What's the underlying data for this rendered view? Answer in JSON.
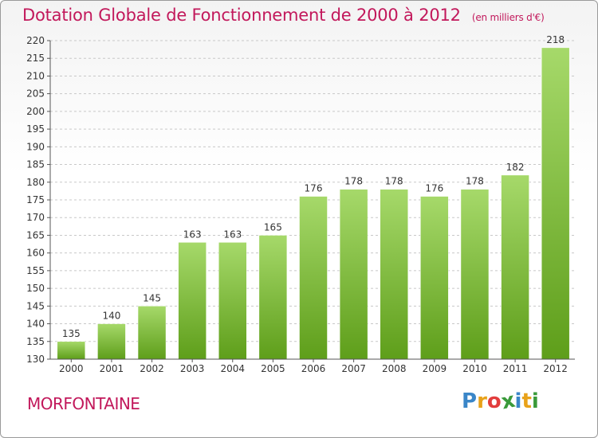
{
  "title": "Dotation Globale de Fonctionnement de 2000 à 2012",
  "unit_note": "(en milliers d'€)",
  "place": "MORFONTAINE",
  "logo": {
    "letters": [
      "P",
      "r",
      "o",
      "x",
      "i",
      "t",
      "i"
    ],
    "colors": [
      "#3a86c8",
      "#e8a21a",
      "#e23d3d",
      "#3a9a3a",
      "#3a86c8",
      "#e8a21a",
      "#3a9a3a"
    ]
  },
  "colors": {
    "bar_light": "#a6d96a",
    "bar_dark": "#5e9e1a",
    "grid": "#c8c8c8",
    "title": "#c2185b"
  },
  "chart_data": {
    "type": "bar",
    "categories": [
      "2000",
      "2001",
      "2002",
      "2003",
      "2004",
      "2005",
      "2006",
      "2007",
      "2008",
      "2009",
      "2010",
      "2011",
      "2012"
    ],
    "values": [
      135,
      140,
      145,
      163,
      163,
      165,
      176,
      178,
      178,
      176,
      178,
      182,
      218
    ],
    "title": "Dotation Globale de Fonctionnement de 2000 à 2012",
    "xlabel": "",
    "ylabel": "",
    "ylim": [
      130,
      220
    ],
    "yticks": [
      130,
      135,
      140,
      145,
      150,
      155,
      160,
      165,
      170,
      175,
      180,
      185,
      190,
      195,
      200,
      205,
      210,
      215,
      220
    ],
    "grid": true,
    "legend": "none"
  }
}
